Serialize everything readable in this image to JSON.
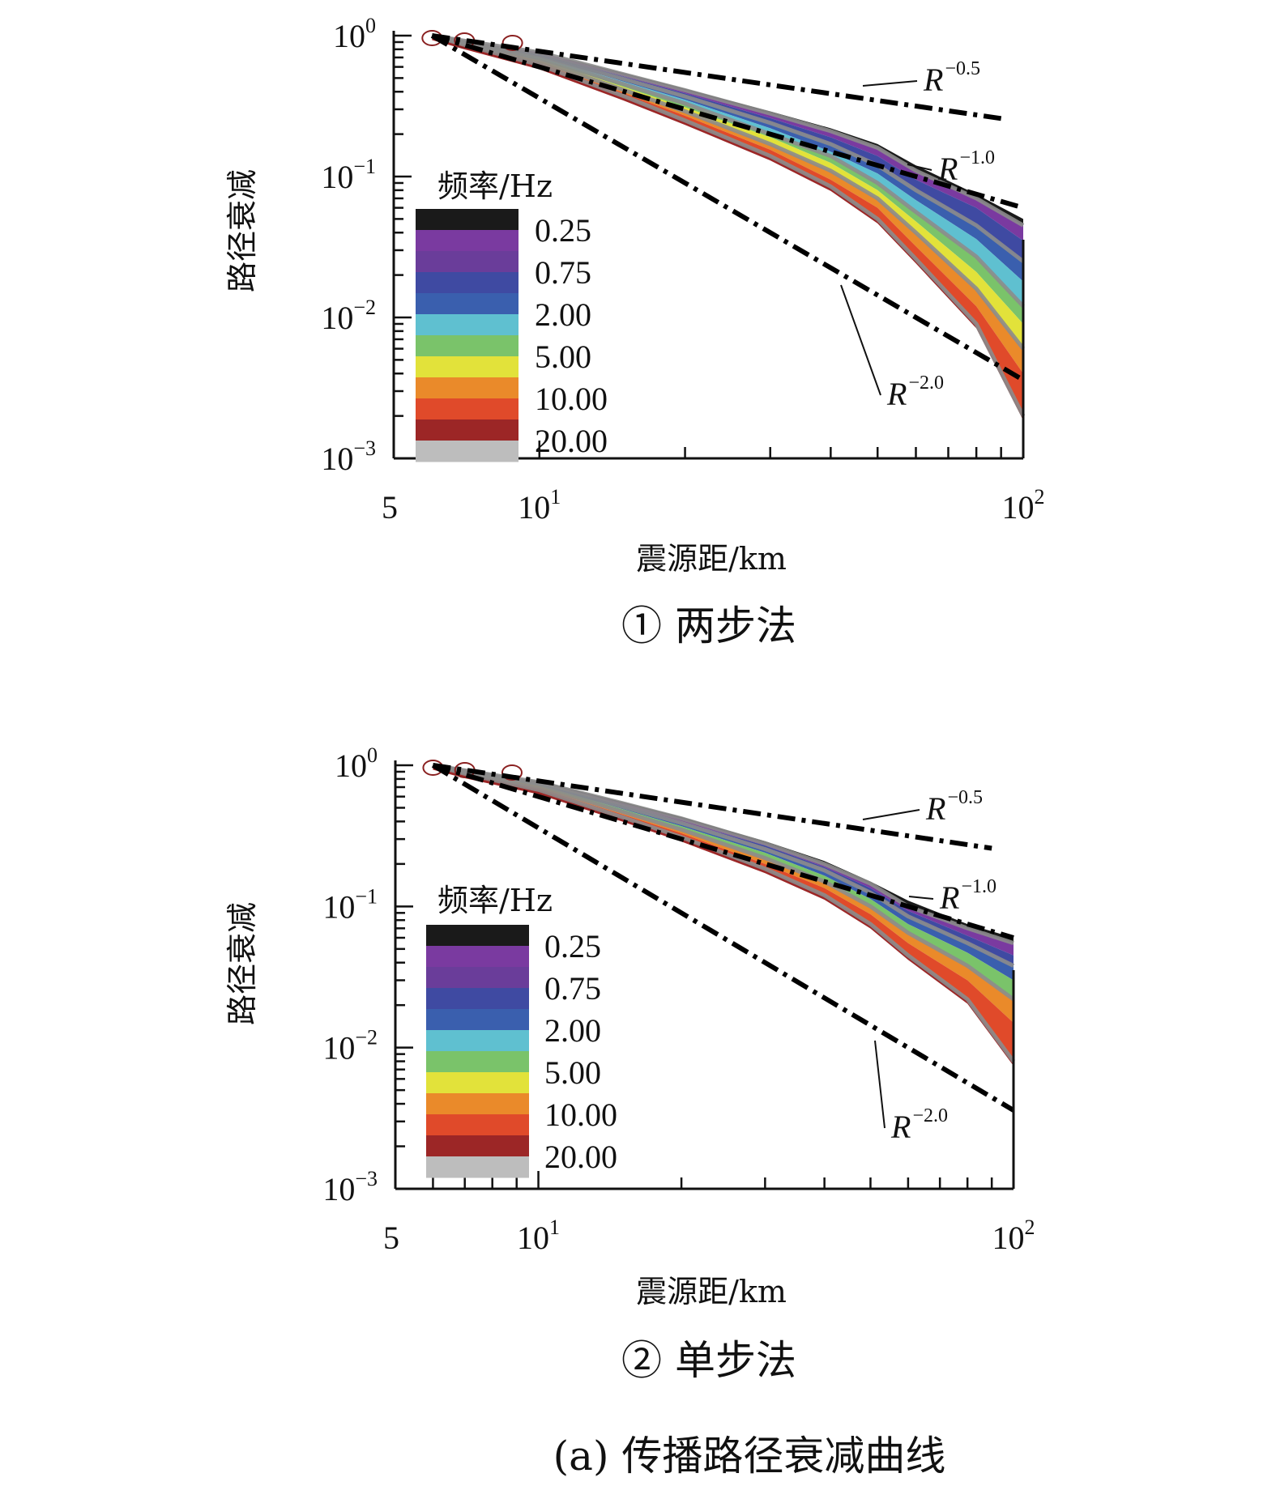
{
  "figure_caption": "(a) 传播路径衰减曲线",
  "colors": {
    "f0.25": "#1a1a1a",
    "f0.50": "#7a3aa0",
    "f0.75": "#6a3d9a",
    "f1.00": "#3f4aa2",
    "f2.00": "#3a5fae",
    "f3.00": "#5fc0d0",
    "f5.00": "#7ac36a",
    "f7.00": "#e2e23a",
    "f10.00": "#ea8a2a",
    "f15.00": "#e04a2a",
    "f20.00": "#9c2626",
    "f25.00": "#bdbdbd",
    "envelope_gray": "#8c8c8c",
    "reference_line": "#000000"
  },
  "chart_data": [
    {
      "type": "line",
      "caption": "① 两步法",
      "xlabel": "震源距/km",
      "ylabel": "路径衰减",
      "x_scale": "log",
      "y_scale": "log",
      "xlim": [
        5,
        100
      ],
      "ylim": [
        0.001,
        1
      ],
      "x_ticks": [
        {
          "value": 5,
          "base": "5",
          "exp": ""
        },
        {
          "value": 10,
          "base": "10",
          "exp": "1"
        },
        {
          "value": 100,
          "base": "10",
          "exp": "2"
        }
      ],
      "y_ticks": [
        {
          "value": 1,
          "base": "10",
          "exp": "0"
        },
        {
          "value": 0.1,
          "base": "10",
          "exp": "−1"
        },
        {
          "value": 0.01,
          "base": "10",
          "exp": "−2"
        },
        {
          "value": 0.001,
          "base": "10",
          "exp": "−3"
        }
      ],
      "legend": {
        "title": "频率/Hz",
        "placement": "left",
        "bands": [
          "f0.25",
          "f0.50",
          "f0.75",
          "f1.00",
          "f2.00",
          "f3.00",
          "f5.00",
          "f7.00",
          "f10.00",
          "f15.00",
          "f20.00",
          "f25.00"
        ],
        "labels": [
          "0.25",
          "0.75",
          "2.00",
          "5.00",
          "10.00",
          "20.00"
        ]
      },
      "series": [
        {
          "color_key": "f0.25",
          "x": [
            6,
            7,
            10,
            15,
            20,
            30,
            40,
            50,
            60,
            80,
            100
          ],
          "y": [
            1.0,
            0.92,
            0.76,
            0.54,
            0.42,
            0.29,
            0.22,
            0.17,
            0.12,
            0.075,
            0.05
          ]
        },
        {
          "color_key": "f0.50",
          "x": [
            6,
            7,
            10,
            15,
            20,
            30,
            40,
            50,
            60,
            80,
            100
          ],
          "y": [
            1.0,
            0.92,
            0.76,
            0.53,
            0.41,
            0.28,
            0.21,
            0.16,
            0.11,
            0.07,
            0.045
          ]
        },
        {
          "color_key": "f1.00",
          "x": [
            6,
            7,
            10,
            15,
            20,
            30,
            40,
            50,
            60,
            80,
            100
          ],
          "y": [
            1.0,
            0.91,
            0.74,
            0.51,
            0.39,
            0.26,
            0.19,
            0.14,
            0.095,
            0.06,
            0.035
          ]
        },
        {
          "color_key": "f2.00",
          "x": [
            6,
            7,
            10,
            15,
            20,
            30,
            40,
            50,
            60,
            80,
            100
          ],
          "y": [
            1.0,
            0.9,
            0.72,
            0.49,
            0.37,
            0.24,
            0.17,
            0.12,
            0.08,
            0.045,
            0.025
          ]
        },
        {
          "color_key": "f3.00",
          "x": [
            6,
            7,
            10,
            15,
            20,
            30,
            40,
            50,
            60,
            80,
            100
          ],
          "y": [
            1.0,
            0.9,
            0.71,
            0.47,
            0.35,
            0.22,
            0.15,
            0.105,
            0.068,
            0.036,
            0.018
          ]
        },
        {
          "color_key": "f5.00",
          "x": [
            6,
            7,
            10,
            15,
            20,
            30,
            40,
            50,
            60,
            80,
            100
          ],
          "y": [
            1.0,
            0.89,
            0.69,
            0.45,
            0.33,
            0.2,
            0.14,
            0.09,
            0.056,
            0.027,
            0.012
          ]
        },
        {
          "color_key": "f7.00",
          "x": [
            6,
            7,
            10,
            15,
            20,
            30,
            40,
            50,
            60,
            80,
            100
          ],
          "y": [
            1.0,
            0.88,
            0.68,
            0.43,
            0.31,
            0.19,
            0.125,
            0.08,
            0.048,
            0.021,
            0.009
          ]
        },
        {
          "color_key": "f10.00",
          "x": [
            6,
            7,
            10,
            15,
            20,
            30,
            40,
            50,
            60,
            80,
            100
          ],
          "y": [
            1.0,
            0.88,
            0.66,
            0.41,
            0.29,
            0.17,
            0.11,
            0.07,
            0.04,
            0.016,
            0.006
          ]
        },
        {
          "color_key": "f15.00",
          "x": [
            6,
            7,
            10,
            15,
            20,
            30,
            40,
            50,
            60,
            80,
            100
          ],
          "y": [
            1.0,
            0.87,
            0.64,
            0.39,
            0.27,
            0.155,
            0.095,
            0.06,
            0.032,
            0.012,
            0.004
          ]
        },
        {
          "color_key": "f20.00",
          "x": [
            6,
            7,
            10,
            15,
            20,
            30,
            40,
            50,
            60,
            80,
            100
          ],
          "y": [
            1.0,
            0.86,
            0.62,
            0.37,
            0.25,
            0.14,
            0.085,
            0.05,
            0.026,
            0.009,
            0.002
          ]
        }
      ],
      "reference_lines": [
        {
          "label": "R",
          "exp": "−0.5",
          "power": -0.5,
          "x": [
            6,
            90
          ]
        },
        {
          "label": "R",
          "exp": "−1.0",
          "power": -1.0,
          "x": [
            6,
            100
          ]
        },
        {
          "label": "R",
          "exp": "−2.0",
          "power": -2.0,
          "x": [
            6,
            100
          ]
        }
      ]
    },
    {
      "type": "line",
      "caption": "② 单步法",
      "xlabel": "震源距/km",
      "ylabel": "路径衰减",
      "x_scale": "log",
      "y_scale": "log",
      "xlim": [
        5,
        100
      ],
      "ylim": [
        0.001,
        1
      ],
      "x_ticks": [
        {
          "value": 5,
          "base": "5",
          "exp": ""
        },
        {
          "value": 10,
          "base": "10",
          "exp": "1"
        },
        {
          "value": 100,
          "base": "10",
          "exp": "2"
        }
      ],
      "y_ticks": [
        {
          "value": 1,
          "base": "10",
          "exp": "0"
        },
        {
          "value": 0.1,
          "base": "10",
          "exp": "−1"
        },
        {
          "value": 0.01,
          "base": "10",
          "exp": "−2"
        },
        {
          "value": 0.001,
          "base": "10",
          "exp": "−3"
        }
      ],
      "legend": {
        "title": "频率/Hz",
        "placement": "left",
        "bands": [
          "f0.25",
          "f0.50",
          "f0.75",
          "f1.00",
          "f2.00",
          "f3.00",
          "f5.00",
          "f7.00",
          "f10.00",
          "f15.00",
          "f20.00",
          "f25.00"
        ],
        "labels": [
          "0.25",
          "0.75",
          "2.00",
          "5.00",
          "10.00",
          "20.00"
        ]
      },
      "series": [
        {
          "color_key": "f0.25",
          "x": [
            6,
            7,
            10,
            15,
            20,
            30,
            40,
            50,
            60,
            80,
            100
          ],
          "y": [
            1.0,
            0.92,
            0.77,
            0.55,
            0.43,
            0.29,
            0.21,
            0.15,
            0.11,
            0.075,
            0.06
          ]
        },
        {
          "color_key": "f0.50",
          "x": [
            6,
            7,
            10,
            15,
            20,
            30,
            40,
            50,
            60,
            80,
            100
          ],
          "y": [
            1.0,
            0.92,
            0.76,
            0.54,
            0.42,
            0.28,
            0.2,
            0.145,
            0.1,
            0.07,
            0.055
          ]
        },
        {
          "color_key": "f1.00",
          "x": [
            6,
            7,
            10,
            15,
            20,
            30,
            40,
            50,
            60,
            80,
            100
          ],
          "y": [
            1.0,
            0.91,
            0.75,
            0.52,
            0.4,
            0.27,
            0.19,
            0.135,
            0.093,
            0.062,
            0.045
          ]
        },
        {
          "color_key": "f2.00",
          "x": [
            6,
            7,
            10,
            15,
            20,
            30,
            40,
            50,
            60,
            80,
            100
          ],
          "y": [
            1.0,
            0.91,
            0.74,
            0.51,
            0.39,
            0.255,
            0.18,
            0.125,
            0.085,
            0.055,
            0.038
          ]
        },
        {
          "color_key": "f5.00",
          "x": [
            6,
            7,
            10,
            15,
            20,
            30,
            40,
            50,
            60,
            80,
            100
          ],
          "y": [
            1.0,
            0.9,
            0.73,
            0.49,
            0.37,
            0.24,
            0.165,
            0.113,
            0.075,
            0.047,
            0.03
          ]
        },
        {
          "color_key": "f10.00",
          "x": [
            6,
            7,
            10,
            15,
            20,
            30,
            40,
            50,
            60,
            80,
            100
          ],
          "y": [
            1.0,
            0.89,
            0.71,
            0.47,
            0.35,
            0.22,
            0.15,
            0.1,
            0.065,
            0.038,
            0.022
          ]
        },
        {
          "color_key": "f15.00",
          "x": [
            6,
            7,
            10,
            15,
            20,
            30,
            40,
            50,
            60,
            80,
            100
          ],
          "y": [
            1.0,
            0.88,
            0.69,
            0.45,
            0.33,
            0.2,
            0.135,
            0.088,
            0.055,
            0.03,
            0.015
          ]
        },
        {
          "color_key": "f20.00",
          "x": [
            6,
            7,
            10,
            15,
            20,
            30,
            40,
            50,
            60,
            80,
            100
          ],
          "y": [
            1.0,
            0.87,
            0.67,
            0.43,
            0.31,
            0.185,
            0.12,
            0.075,
            0.045,
            0.022,
            0.008
          ]
        }
      ],
      "reference_lines": [
        {
          "label": "R",
          "exp": "−0.5",
          "power": -0.5,
          "x": [
            6,
            90
          ]
        },
        {
          "label": "R",
          "exp": "−1.0",
          "power": -1.0,
          "x": [
            6,
            100
          ]
        },
        {
          "label": "R",
          "exp": "−2.0",
          "power": -2.0,
          "x": [
            6,
            100
          ]
        }
      ]
    }
  ]
}
